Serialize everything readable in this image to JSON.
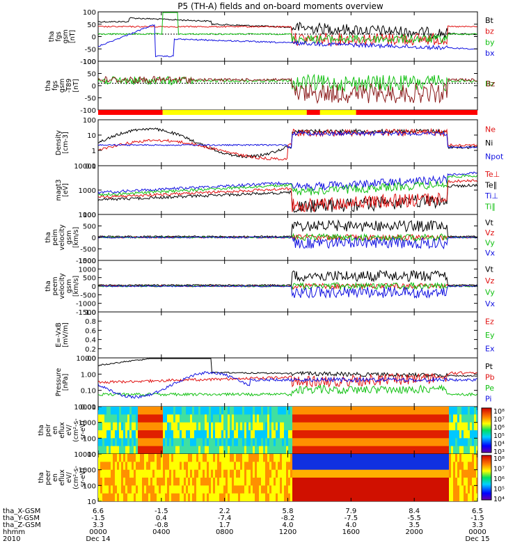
{
  "chart_data": {
    "type": "line",
    "title": "P5 (TH-A) fields and on-board moments overview",
    "x_ticks": [
      {
        "rows": [
          "6.6",
          "-1.5",
          "3.3",
          "0000",
          "Dec 14"
        ]
      },
      {
        "rows": [
          "-1.5",
          "0.4",
          "-0.8",
          "0400",
          ""
        ]
      },
      {
        "rows": [
          "2.2",
          "-7.4",
          "1.7",
          "0800",
          ""
        ]
      },
      {
        "rows": [
          "5.8",
          "-8.2",
          "4.0",
          "1200",
          ""
        ]
      },
      {
        "rows": [
          "7.9",
          "-7.5",
          "4.0",
          "1600",
          ""
        ]
      },
      {
        "rows": [
          "8.4",
          "-5.5",
          "3.5",
          "2000",
          ""
        ]
      },
      {
        "rows": [
          "6.5",
          "-1.5",
          "3.3",
          "0000",
          "Dec 15"
        ]
      }
    ],
    "x_row_labels": [
      "tha_X-GSM",
      "tha_Y-GSM",
      "tha_Z-GSM",
      "hhmm",
      "2010"
    ],
    "panels": [
      {
        "ylabel": [
          "tha",
          "fgs",
          "gsm",
          "[nT]"
        ],
        "yticks": [
          "100",
          "50",
          "0",
          "-50",
          "-100"
        ],
        "legend": [
          {
            "name": "Bt",
            "color": "#000000"
          },
          {
            "name": "bz",
            "color": "#e01010"
          },
          {
            "name": "by",
            "color": "#10c010"
          },
          {
            "name": "bx",
            "color": "#1010e0"
          }
        ]
      },
      {
        "ylabel": [
          "tha",
          "fgs",
          "gsm",
          "-T89",
          "[nT]"
        ],
        "yticks": [
          "100",
          "50",
          "0",
          "-50",
          "-100"
        ],
        "legend": [
          {
            "name": "Bz",
            "color": "#10c010"
          },
          {
            "name": "Bz",
            "color": "#8b1a1a"
          }
        ]
      },
      {
        "ylabel": [
          "Density",
          "[cm-3]"
        ],
        "yticks": [
          "100",
          "10",
          "1",
          "0.1"
        ],
        "legend": [
          {
            "name": "Ne",
            "color": "#e01010"
          },
          {
            "name": "Ni",
            "color": "#000000"
          },
          {
            "name": "Npot",
            "color": "#1010e0"
          }
        ]
      },
      {
        "ylabel": [
          "magt3",
          "[eV]"
        ],
        "yticks": [
          "10000",
          "1000",
          "100"
        ],
        "legend": [
          {
            "name": "Te⊥",
            "color": "#e01010"
          },
          {
            "name": "Te∥",
            "color": "#000000"
          },
          {
            "name": "Ti⊥",
            "color": "#1010e0"
          },
          {
            "name": "Ti∥",
            "color": "#10c010"
          }
        ]
      },
      {
        "ylabel": [
          "tha",
          "peim",
          "velocity",
          "gsm",
          "[km/s]"
        ],
        "yticks": [
          "1000",
          "500",
          "0",
          "-500",
          "-1000"
        ],
        "legend": [
          {
            "name": "Vt",
            "color": "#000000"
          },
          {
            "name": "Vz",
            "color": "#e01010"
          },
          {
            "name": "Vy",
            "color": "#10c010"
          },
          {
            "name": "Vx",
            "color": "#1010e0"
          }
        ]
      },
      {
        "ylabel": [
          "tha",
          "peem",
          "velocity",
          "gsm",
          "[km/s]"
        ],
        "yticks": [
          "1500",
          "1000",
          "500",
          "0",
          "-500",
          "-1000",
          "-1500"
        ],
        "legend": [
          {
            "name": "Vt",
            "color": "#000000"
          },
          {
            "name": "Vz",
            "color": "#e01010"
          },
          {
            "name": "Vy",
            "color": "#10c010"
          },
          {
            "name": "Vx",
            "color": "#1010e0"
          }
        ]
      },
      {
        "ylabel": [
          "E=-VxB",
          "[mV/m]"
        ],
        "yticks": [
          "1.0",
          "0.8",
          "0.6",
          "0.4",
          "0.2",
          "0.0"
        ],
        "legend": [
          {
            "name": "Ez",
            "color": "#e01010"
          },
          {
            "name": "Ey",
            "color": "#10c010"
          },
          {
            "name": "Ex",
            "color": "#1010e0"
          }
        ]
      },
      {
        "ylabel": [
          "Pressure",
          "[nPa]"
        ],
        "yticks": [
          "10.00",
          "1.00",
          "0.10",
          "0.01"
        ],
        "legend": [
          {
            "name": "Pt",
            "color": "#000000"
          },
          {
            "name": "Pb",
            "color": "#e01010"
          },
          {
            "name": "Pe",
            "color": "#10c010"
          },
          {
            "name": "Pi",
            "color": "#1010e0"
          }
        ]
      },
      {
        "ylabel": [
          "tha",
          "peir",
          "en",
          "eflux",
          "eV/",
          "(cm²-s-",
          "sr-eV)"
        ],
        "yticks": [
          "10000",
          "1000",
          "100",
          "10"
        ],
        "colorbar": [
          "10⁸",
          "10⁷",
          "10⁶",
          "10⁵",
          "10⁴",
          "10³"
        ]
      },
      {
        "ylabel": [
          "tha",
          "peer",
          "en",
          "eflux",
          "eV/",
          "(cm²-s-",
          "sr-eV)"
        ],
        "yticks": [
          "10000",
          "1000",
          "100",
          "10"
        ],
        "colorbar": [
          "10⁸",
          "10⁷",
          "10⁶",
          "10⁵",
          "10⁴"
        ]
      }
    ],
    "mode_bar": [
      {
        "from": 0.0,
        "to": 0.17,
        "color": "#ff0000"
      },
      {
        "from": 0.17,
        "to": 0.55,
        "color": "#ffff00"
      },
      {
        "from": 0.55,
        "to": 0.585,
        "color": "#ff0000"
      },
      {
        "from": 0.585,
        "to": 0.68,
        "color": "#ffff00"
      },
      {
        "from": 0.68,
        "to": 1.0,
        "color": "#ff0000"
      }
    ]
  }
}
